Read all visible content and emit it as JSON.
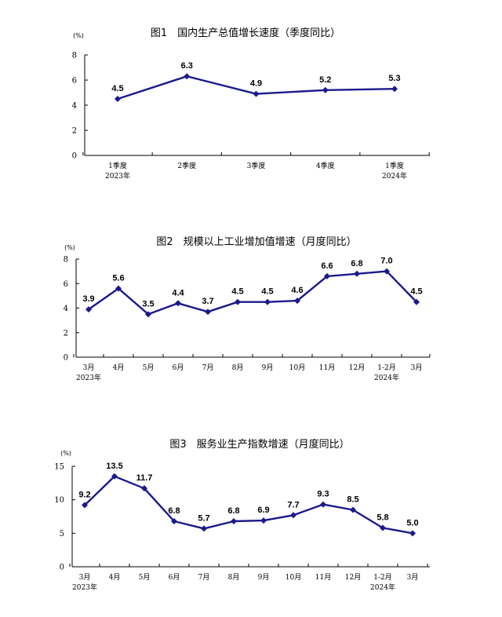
{
  "chart_data": [
    {
      "type": "line",
      "title": "图1　国内生产总值增长速度（季度同比）",
      "unit": "(%)",
      "ylim": [
        0,
        8
      ],
      "yticks": [
        "0",
        "2",
        "4",
        "6",
        "8"
      ],
      "categories": [
        "1季度",
        "2季度",
        "3季度",
        "4季度",
        "1季度"
      ],
      "year_labels": [
        "2023年",
        "",
        "",
        "",
        "2024年"
      ],
      "values": [
        4.5,
        6.3,
        4.9,
        5.2,
        5.3
      ],
      "value_labels": [
        "4.5",
        "6.3",
        "4.9",
        "5.2",
        "5.3"
      ],
      "grid": false
    },
    {
      "type": "line",
      "title": "图2　规模以上工业增加值增速（月度同比）",
      "unit": "(%)",
      "ylim": [
        0,
        8
      ],
      "yticks": [
        "0",
        "2",
        "4",
        "6",
        "8"
      ],
      "categories": [
        "3月",
        "4月",
        "5月",
        "6月",
        "7月",
        "8月",
        "9月",
        "10月",
        "11月",
        "12月",
        "1-2月",
        "3月"
      ],
      "year_labels": [
        "2023年",
        "",
        "",
        "",
        "",
        "",
        "",
        "",
        "",
        "",
        "2024年",
        ""
      ],
      "values": [
        3.9,
        5.6,
        3.5,
        4.4,
        3.7,
        4.5,
        4.5,
        4.6,
        6.6,
        6.8,
        7.0,
        4.5
      ],
      "value_labels": [
        "3.9",
        "5.6",
        "3.5",
        "4.4",
        "3.7",
        "4.5",
        "4.5",
        "4.6",
        "6.6",
        "6.8",
        "7.0",
        "4.5"
      ],
      "grid": false
    },
    {
      "type": "line",
      "title": "图3　服务业生产指数增速（月度同比）",
      "unit": "(%)",
      "ylim": [
        0,
        15
      ],
      "yticks": [
        "0",
        "5",
        "10",
        "15"
      ],
      "categories": [
        "3月",
        "4月",
        "5月",
        "6月",
        "7月",
        "8月",
        "9月",
        "10月",
        "11月",
        "12月",
        "1-2月",
        "3月"
      ],
      "year_labels": [
        "2023年",
        "",
        "",
        "",
        "",
        "",
        "",
        "",
        "",
        "",
        "2024年",
        ""
      ],
      "values": [
        9.2,
        13.5,
        11.7,
        6.8,
        5.7,
        6.8,
        6.9,
        7.7,
        9.3,
        8.5,
        5.8,
        5.0
      ],
      "value_labels": [
        "9.2",
        "13.5",
        "11.7",
        "6.8",
        "5.7",
        "6.8",
        "6.9",
        "7.7",
        "9.3",
        "8.5",
        "5.8",
        "5.0"
      ],
      "grid": false
    }
  ],
  "colors": {
    "line": "#1a1a8c",
    "axis": "#000000"
  }
}
